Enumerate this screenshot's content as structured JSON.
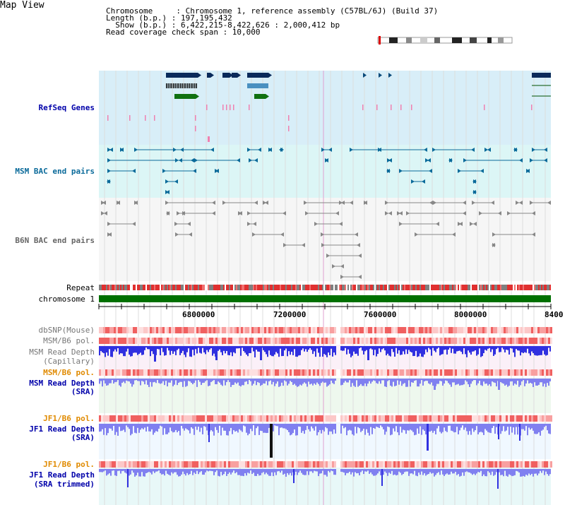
{
  "title": "Map View",
  "header": {
    "line1": "Chromosome     : Chromosome 1, reference assembly (C57BL/6J) (Build 37)",
    "line2": "Length (b.p.) : 197,195,432",
    "line3": "  Show (b.p.) : 6,422,215-8,422,626 : 2,000,412 bp",
    "line4": "Read coverage check span : 10,000"
  },
  "tracks": {
    "refseq": "RefSeq Genes",
    "msm_bac": "MSM BAC end pairs",
    "b6n_bac": "B6N BAC end pairs",
    "repeat": "Repeat",
    "chromosome": "chromosome 1",
    "dbsnp": "dbSNP(Mouse)",
    "msm_b6_pol_1": "MSM/B6 pol.",
    "msm_read_depth_cap_1": "MSM Read Depth",
    "msm_read_depth_cap_2": "(Capillary)",
    "msm_b6_pol_2": "MSM/B6 pol.",
    "msm_read_depth_sra_1": "MSM Read Depth",
    "msm_read_depth_sra_2": "(SRA)",
    "jf1_b6_pol_1": "JF1/B6 pol.",
    "jf1_read_depth_sra_1": "JF1 Read Depth",
    "jf1_read_depth_sra_2": "(SRA)",
    "jf1_b6_pol_2": "JF1/B6 pol.",
    "jf1_read_depth_trim_1": "JF1 Read Depth",
    "jf1_read_depth_trim_2": "(SRA trimmed)"
  },
  "axis": {
    "ticks": [
      "6800000",
      "7200000",
      "7600000",
      "8000000",
      "8400"
    ]
  },
  "colors": {
    "refseq_bg": "#d8eef8",
    "msm_bg": "#dcf6f6",
    "gene_navy": "#0a2a5a",
    "gene_green": "#107010",
    "chromosome_bar": "#007000",
    "depth_blue": "#3030e0",
    "depth_light": "#8080f0"
  }
}
